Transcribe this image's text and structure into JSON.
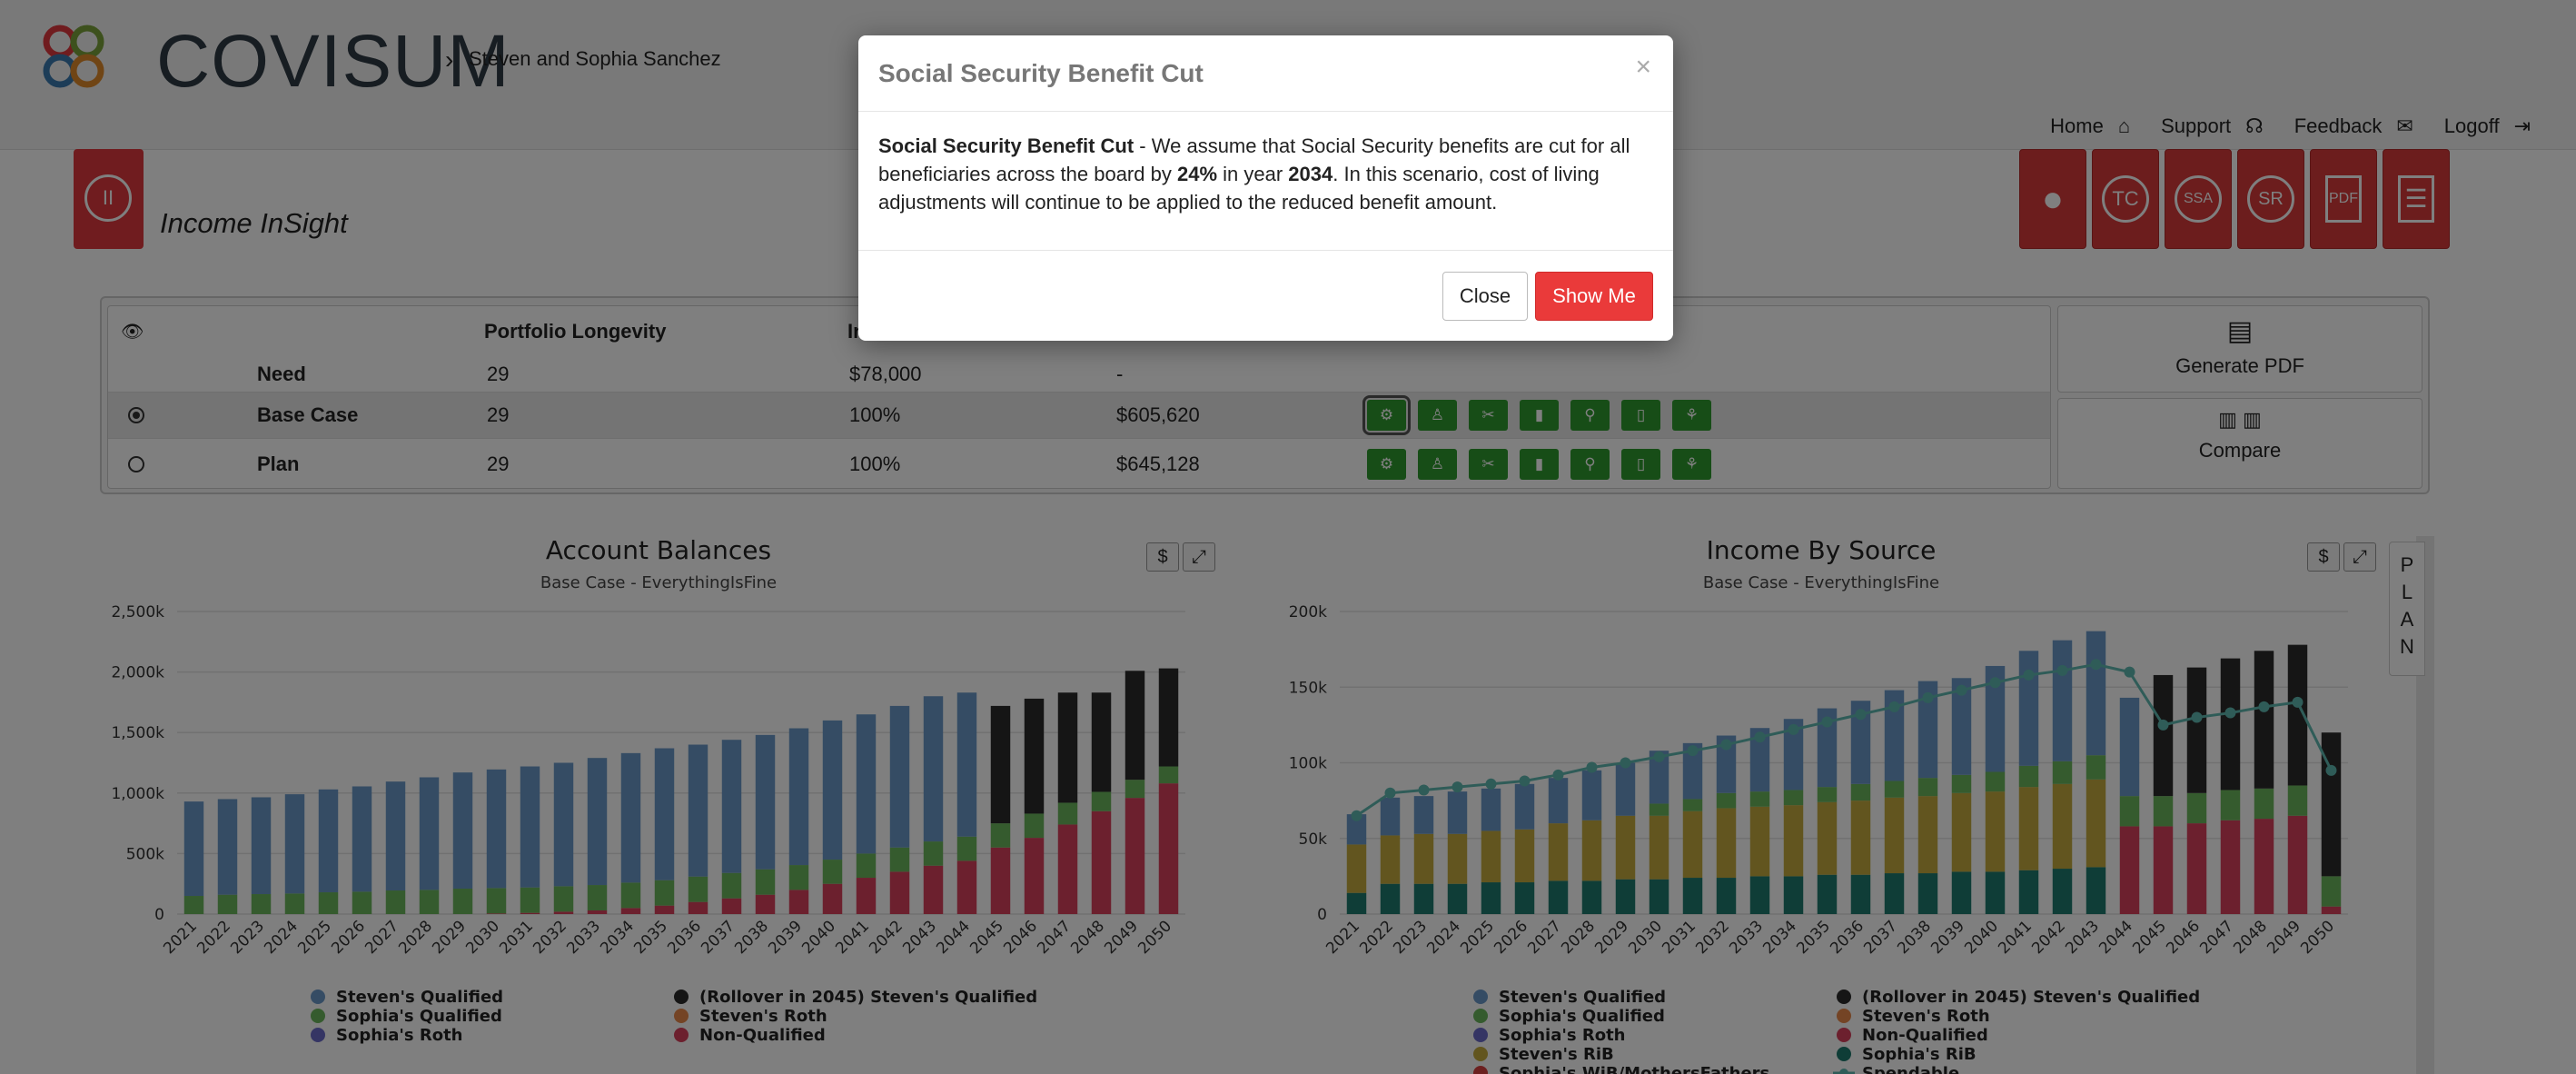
{
  "brand": {
    "name": "COVISUM"
  },
  "breadcrumb": {
    "client": "Steven and Sophia Sanchez"
  },
  "topnav": [
    {
      "label": "Home",
      "icon": "home-icon",
      "glyph": "⌂"
    },
    {
      "label": "Support",
      "icon": "headset-icon",
      "glyph": "☊"
    },
    {
      "label": "Feedback",
      "icon": "chat-icon",
      "glyph": "✉"
    },
    {
      "label": "Logoff",
      "icon": "logout-icon",
      "glyph": "⇥"
    }
  ],
  "product": {
    "title": "Income InSight"
  },
  "red_buttons": [
    {
      "name": "client-profile-button",
      "icon": "user-icon",
      "glyph": "👤"
    },
    {
      "name": "tc-button",
      "icon": "tc-icon",
      "glyph": "TC"
    },
    {
      "name": "ssa-button",
      "icon": "ssa-card-icon",
      "glyph": "SSA"
    },
    {
      "name": "sr-button",
      "icon": "sr-icon",
      "glyph": "SR"
    },
    {
      "name": "pdf-report-button",
      "icon": "pdf-icon",
      "glyph": "PDF"
    },
    {
      "name": "document-button",
      "icon": "document-icon",
      "glyph": "☰"
    }
  ],
  "scenario_table": {
    "headers": {
      "portfolio_longevity": "Portfolio Longevity",
      "col3_partial": "In"
    },
    "rows": [
      {
        "label": "Need",
        "longevity": "29",
        "col3": "$78,000",
        "col4": "-"
      },
      {
        "label": "Base Case",
        "longevity": "29",
        "col3": "100%",
        "col4": "$605,620"
      },
      {
        "label": "Plan",
        "longevity": "29",
        "col3": "100%",
        "col4": "$645,128"
      }
    ],
    "action_icons": [
      "settings-icon",
      "person-icon",
      "scissors-icon",
      "trash-icon",
      "walk-icon",
      "clipboard-icon",
      "chart-person-icon"
    ]
  },
  "side_buttons": {
    "generate_pdf": "Generate PDF",
    "compare": "Compare"
  },
  "plan_tab": {
    "letters": [
      "P",
      "L",
      "A",
      "N"
    ]
  },
  "chart_tools": {
    "dollar": "$",
    "expand": "⤢"
  },
  "chart_data": [
    {
      "type": "bar",
      "stacked": true,
      "title": "Account Balances",
      "subtitle": "Base Case - EverythingIsFine",
      "categories": [
        "2021",
        "2022",
        "2023",
        "2024",
        "2025",
        "2026",
        "2027",
        "2028",
        "2029",
        "2030",
        "2031",
        "2032",
        "2033",
        "2034",
        "2035",
        "2036",
        "2037",
        "2038",
        "2039",
        "2040",
        "2041",
        "2042",
        "2043",
        "2044",
        "2045",
        "2046",
        "2047",
        "2048",
        "2049",
        "2050"
      ],
      "ylim": [
        0,
        2500000
      ],
      "yticks": [
        "0",
        "500k",
        "1,000k",
        "1,500k",
        "2,000k",
        "2,500k"
      ],
      "series": [
        {
          "name": "Non-Qualified",
          "color": "#d9405d",
          "values": [
            0,
            0,
            0,
            0,
            0,
            0,
            0,
            0,
            0,
            5000,
            10000,
            20000,
            30000,
            50000,
            70000,
            100000,
            130000,
            160000,
            200000,
            250000,
            300000,
            350000,
            400000,
            440000,
            550000,
            630000,
            740000,
            850000,
            960000,
            1080000
          ]
        },
        {
          "name": "Sophia's Qualified",
          "color": "#6bb65c",
          "values": [
            150000,
            160000,
            165000,
            170000,
            180000,
            185000,
            195000,
            200000,
            210000,
            210000,
            210000,
            210000,
            210000,
            210000,
            210000,
            210000,
            210000,
            210000,
            205000,
            200000,
            200000,
            200000,
            200000,
            200000,
            200000,
            200000,
            180000,
            160000,
            150000,
            140000
          ]
        },
        {
          "name": "Steven's Qualified",
          "color": "#6a99c9",
          "values": [
            780000,
            790000,
            800000,
            820000,
            850000,
            870000,
            900000,
            930000,
            960000,
            980000,
            1000000,
            1020000,
            1050000,
            1070000,
            1090000,
            1090000,
            1100000,
            1110000,
            1130000,
            1150000,
            1150000,
            1170000,
            1200000,
            1190000,
            0,
            0,
            0,
            0,
            0,
            0
          ]
        },
        {
          "name": "(Rollover in 2045) Steven's Qualified",
          "color": "#2a2a2a",
          "values": [
            0,
            0,
            0,
            0,
            0,
            0,
            0,
            0,
            0,
            0,
            0,
            0,
            0,
            0,
            0,
            0,
            0,
            0,
            0,
            0,
            0,
            0,
            0,
            0,
            970000,
            950000,
            910000,
            820000,
            900000,
            810000
          ]
        }
      ],
      "legend": [
        {
          "name": "Steven's Qualified",
          "color": "#6a99c9"
        },
        {
          "name": "(Rollover in 2045) Steven's Qualified",
          "color": "#2a2a2a"
        },
        {
          "name": "Sophia's Qualified",
          "color": "#6bb65c"
        },
        {
          "name": "Steven's Roth",
          "color": "#e8884a"
        },
        {
          "name": "Sophia's Roth",
          "color": "#6a6ac9"
        },
        {
          "name": "Non-Qualified",
          "color": "#d9405d"
        }
      ]
    },
    {
      "type": "bar",
      "stacked": true,
      "title": "Income By Source",
      "subtitle": "Base Case - EverythingIsFine",
      "categories": [
        "2021",
        "2022",
        "2023",
        "2024",
        "2025",
        "2026",
        "2027",
        "2028",
        "2029",
        "2030",
        "2031",
        "2032",
        "2033",
        "2034",
        "2035",
        "2036",
        "2037",
        "2038",
        "2039",
        "2040",
        "2041",
        "2042",
        "2043",
        "2044",
        "2045",
        "2046",
        "2047",
        "2048",
        "2049",
        "2050"
      ],
      "ylim": [
        0,
        200000
      ],
      "yticks": [
        "0",
        "50k",
        "100k",
        "150k",
        "200k"
      ],
      "series": [
        {
          "name": "Sophia's RiB",
          "color": "#1f7a6e",
          "values": [
            14000,
            20000,
            20000,
            20000,
            21000,
            21000,
            22000,
            22000,
            23000,
            23000,
            24000,
            24000,
            25000,
            25000,
            26000,
            26000,
            27000,
            27000,
            28000,
            28000,
            29000,
            30000,
            31000,
            0,
            0,
            0,
            0,
            0,
            0,
            0
          ]
        },
        {
          "name": "Non-Qualified",
          "color": "#d9405d",
          "values": [
            0,
            0,
            0,
            0,
            0,
            0,
            0,
            0,
            0,
            0,
            0,
            0,
            0,
            0,
            0,
            0,
            0,
            0,
            0,
            0,
            0,
            0,
            0,
            58000,
            58000,
            60000,
            62000,
            63000,
            65000,
            5000
          ]
        },
        {
          "name": "Steven's RiB",
          "color": "#c4ab3f",
          "values": [
            32000,
            32000,
            33000,
            33000,
            34000,
            35000,
            38000,
            40000,
            42000,
            42000,
            44000,
            46000,
            46000,
            47000,
            48000,
            49000,
            50000,
            51000,
            52000,
            53000,
            55000,
            56000,
            58000,
            0,
            0,
            0,
            0,
            0,
            0,
            0
          ]
        },
        {
          "name": "Sophia's Qualified",
          "color": "#6bb65c",
          "values": [
            0,
            0,
            0,
            0,
            0,
            0,
            0,
            0,
            0,
            8000,
            8000,
            10000,
            10000,
            10000,
            10000,
            11000,
            11000,
            12000,
            12000,
            13000,
            14000,
            15000,
            16000,
            20000,
            20000,
            20000,
            20000,
            20000,
            20000,
            20000
          ]
        },
        {
          "name": "Steven's Qualified",
          "color": "#6a99c9",
          "values": [
            20000,
            25000,
            25000,
            28000,
            28000,
            30000,
            30000,
            33000,
            35000,
            35000,
            37000,
            38000,
            42000,
            47000,
            52000,
            55000,
            60000,
            64000,
            64000,
            70000,
            76000,
            80000,
            82000,
            65000,
            0,
            0,
            0,
            0,
            0,
            0
          ]
        },
        {
          "name": "(Rollover in 2045) Steven's Qualified",
          "color": "#2a2a2a",
          "values": [
            0,
            0,
            0,
            0,
            0,
            0,
            0,
            0,
            0,
            0,
            0,
            0,
            0,
            0,
            0,
            0,
            0,
            0,
            0,
            0,
            0,
            0,
            0,
            0,
            80000,
            83000,
            87000,
            91000,
            93000,
            95000
          ]
        }
      ],
      "line": {
        "name": "Spendable",
        "color": "#5fb8b0",
        "values": [
          65000,
          80000,
          82000,
          84000,
          86000,
          88000,
          92000,
          97000,
          100000,
          104000,
          108000,
          112000,
          117000,
          122000,
          127000,
          132000,
          137000,
          143000,
          148000,
          153000,
          158000,
          161000,
          165000,
          160000,
          125000,
          130000,
          133000,
          137000,
          140000,
          95000
        ]
      },
      "legend": [
        {
          "name": "Steven's Qualified",
          "color": "#6a99c9"
        },
        {
          "name": "(Rollover in 2045) Steven's Qualified",
          "color": "#2a2a2a"
        },
        {
          "name": "Sophia's Qualified",
          "color": "#6bb65c"
        },
        {
          "name": "Steven's Roth",
          "color": "#e8884a"
        },
        {
          "name": "Sophia's Roth",
          "color": "#6a6ac9"
        },
        {
          "name": "Non-Qualified",
          "color": "#d9405d"
        },
        {
          "name": "Steven's RiB",
          "color": "#c4ab3f"
        },
        {
          "name": "Sophia's RiB",
          "color": "#1f7a6e"
        },
        {
          "name": "Sophia's WiB/MothersFathers",
          "color": "#d94040"
        },
        {
          "name": "Spendable",
          "color": "#5fb8b0",
          "line": true
        }
      ]
    }
  ],
  "modal": {
    "title": "Social Security Benefit Cut",
    "body_lead": "Social Security Benefit Cut",
    "body_part1": " - We assume that Social Security benefits are cut for all beneficiaries across the board by ",
    "pct": "24%",
    "body_part2": " in year ",
    "year": "2034",
    "body_part3": ". In this scenario, cost of living adjustments will continue to be applied to the reduced benefit amount.",
    "close_x": "×",
    "close_label": "Close",
    "show_me_label": "Show Me"
  }
}
